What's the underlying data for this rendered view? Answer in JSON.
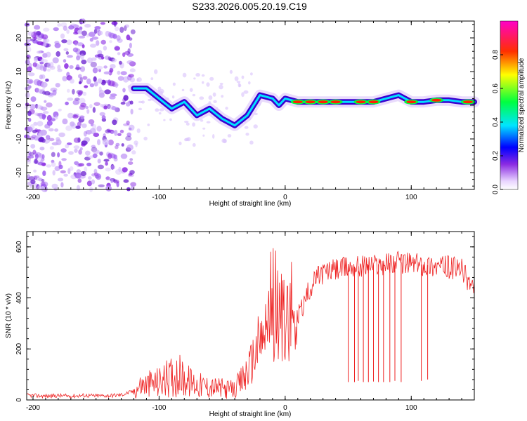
{
  "figure": {
    "title": "S233.2026.005.20.19.C19"
  },
  "chart_data": [
    {
      "type": "heatmap",
      "xlabel": "Height of straight line (km)",
      "ylabel": "Frequency (Hz)",
      "xlim": [
        -205,
        150
      ],
      "ylim": [
        -25,
        25
      ],
      "xticks": [
        -200,
        -100,
        0,
        100
      ],
      "yticks": [
        -20,
        -10,
        0,
        10,
        20
      ],
      "colorbar": {
        "label": "Normalized spectral amplitude",
        "range": [
          0,
          1
        ],
        "ticks": [
          0.0,
          0.2,
          0.4,
          0.6,
          0.8
        ],
        "tick_labels": [
          "0.0",
          "0.2",
          "0.4",
          "0.6",
          "0.8"
        ]
      },
      "ridge": {
        "x": [
          -120,
          -110,
          -100,
          -90,
          -80,
          -70,
          -60,
          -50,
          -40,
          -30,
          -20,
          -10,
          -5,
          0,
          10,
          20,
          30,
          40,
          50,
          60,
          70,
          80,
          90,
          100,
          110,
          120,
          130,
          140,
          150
        ],
        "y": [
          5,
          5,
          2,
          -1,
          1,
          -3,
          -1,
          -4,
          -6,
          -3,
          3,
          2,
          0,
          2,
          1,
          1,
          1,
          1,
          1,
          1,
          1,
          2,
          3,
          1,
          1,
          1.5,
          1.5,
          1,
          1
        ]
      }
    },
    {
      "type": "line",
      "xlabel": "Height of straight line (km)",
      "ylabel": "SNR (10 * v/v)",
      "xlim": [
        -205,
        150
      ],
      "ylim": [
        0,
        660
      ],
      "xticks": [
        -200,
        -100,
        0,
        100
      ],
      "yticks": [
        0,
        200,
        400,
        600
      ],
      "series": [
        {
          "color": "#ee2222",
          "x": [
            -205,
            -190,
            -180,
            -170,
            -160,
            -150,
            -140,
            -130,
            -120,
            -115,
            -110,
            -100,
            -90,
            -85,
            -80,
            -75,
            -70,
            -60,
            -50,
            -40,
            -35,
            -30,
            -25,
            -20,
            -15,
            -10,
            -5,
            0,
            5,
            10,
            15,
            20,
            25,
            30,
            40,
            50,
            60,
            70,
            80,
            90,
            100,
            110,
            120,
            130,
            140,
            145,
            150
          ],
          "y": [
            18,
            15,
            17,
            15,
            18,
            16,
            17,
            20,
            35,
            55,
            60,
            70,
            90,
            100,
            80,
            70,
            60,
            50,
            45,
            40,
            70,
            110,
            170,
            230,
            280,
            310,
            320,
            330,
            340,
            320,
            380,
            440,
            480,
            500,
            510,
            520,
            525,
            530,
            535,
            540,
            535,
            530,
            525,
            520,
            510,
            470,
            440
          ]
        }
      ],
      "dropouts": [
        {
          "x": 50,
          "y": 70
        },
        {
          "x": 55,
          "y": 70
        },
        {
          "x": 58,
          "y": 75
        },
        {
          "x": 62,
          "y": 70
        },
        {
          "x": 66,
          "y": 70
        },
        {
          "x": 70,
          "y": 72
        },
        {
          "x": 74,
          "y": 70
        },
        {
          "x": 78,
          "y": 70
        },
        {
          "x": 83,
          "y": 70
        },
        {
          "x": 87,
          "y": 75
        },
        {
          "x": 92,
          "y": 70
        },
        {
          "x": 108,
          "y": 75
        },
        {
          "x": 113,
          "y": 80
        }
      ]
    }
  ]
}
